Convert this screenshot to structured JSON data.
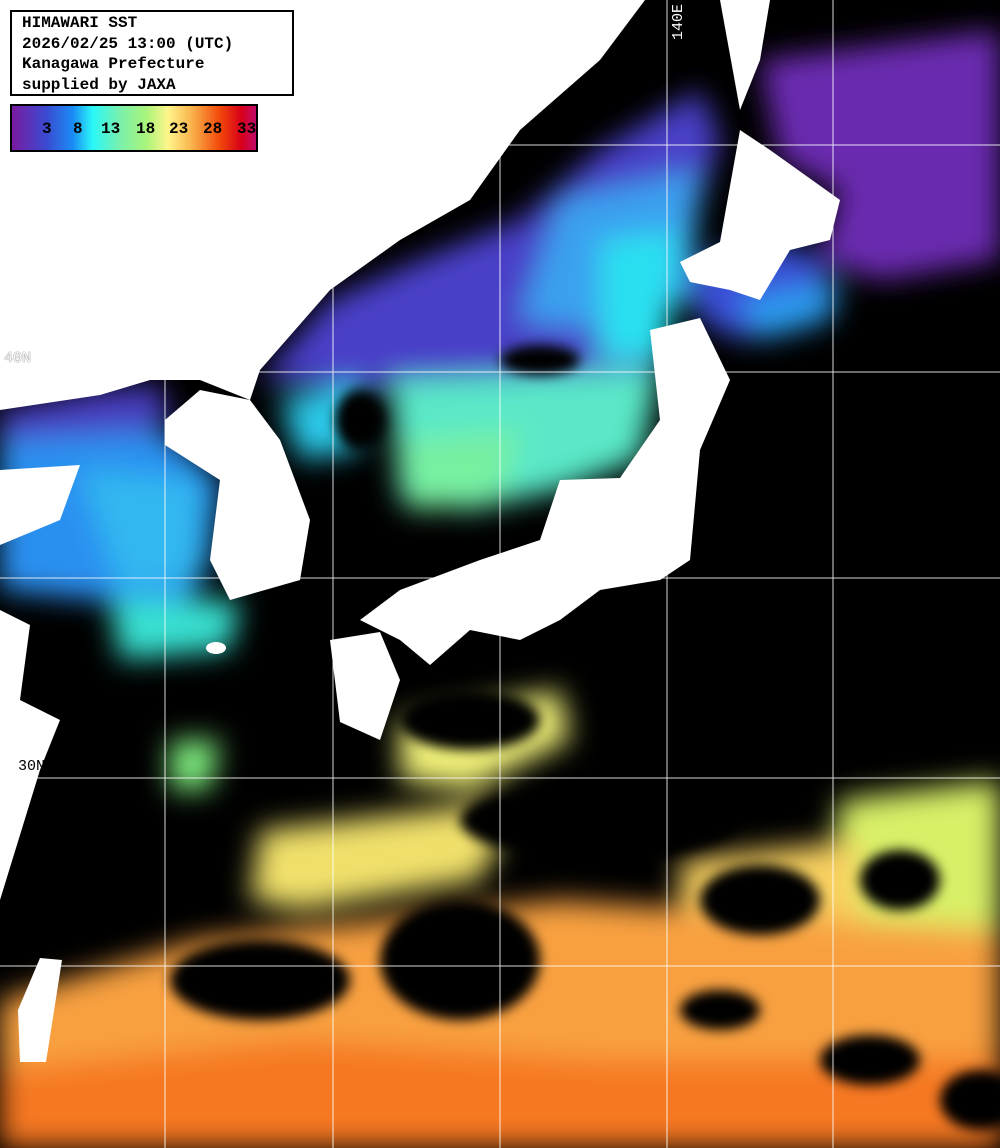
{
  "title_box": {
    "line1": "HIMAWARI SST",
    "line2": "2026/02/25 13:00 (UTC)",
    "line3": "Kanagawa Prefecture",
    "line4": "supplied by JAXA"
  },
  "colorbar": {
    "ticks": [
      "3",
      "8",
      "13",
      "18",
      "23",
      "28",
      "33"
    ],
    "unit_range": [
      -1,
      34
    ],
    "colors": [
      "#7a1aa0",
      "#3a4ad0",
      "#1a8cf5",
      "#2af7f7",
      "#7ef0a8",
      "#a8f47a",
      "#fff58a",
      "#f9b04a",
      "#f24a0a",
      "#d8001a",
      "#c20a6a"
    ]
  },
  "grid_labels": {
    "lat_40": "40N",
    "lat_30": "30N",
    "lon_140": "140E"
  },
  "legend": {
    "land_color": "#ffffff",
    "cloud_color": "#000000",
    "grid_color": "#ffffff"
  }
}
